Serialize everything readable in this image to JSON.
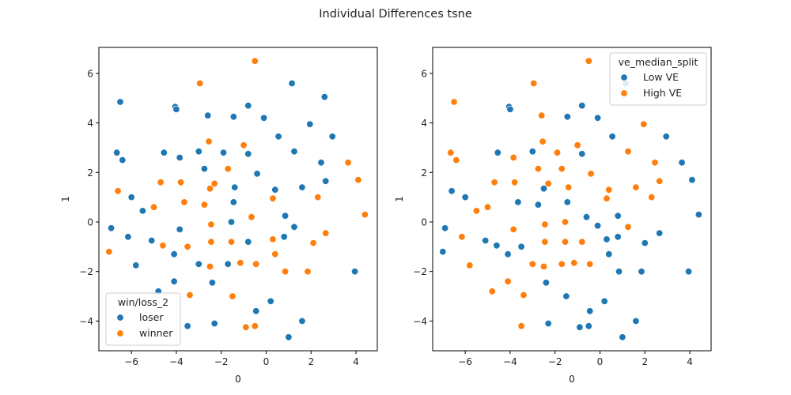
{
  "title": "Individual Differences tsne",
  "colors": {
    "blue": "#1f77b4",
    "orange": "#ff7f0e"
  },
  "chart_data": [
    {
      "type": "scatter",
      "xlabel": "0",
      "ylabel": "1",
      "xlim": [
        -7.45,
        4.95
      ],
      "ylim": [
        -5.2,
        7.05
      ],
      "xticks": [
        -6,
        -4,
        -2,
        0,
        2,
        4
      ],
      "yticks": [
        -4,
        -2,
        0,
        2,
        4,
        6
      ],
      "legend": {
        "title": "win/loss_2",
        "placement": "lower-left"
      },
      "series": [
        {
          "name": "loser",
          "color": "#1f77b4",
          "points": [
            [
              -6.5,
              4.85
            ],
            [
              -4.05,
              4.65
            ],
            [
              -4.0,
              4.55
            ],
            [
              -2.6,
              4.3
            ],
            [
              -1.45,
              4.25
            ],
            [
              -0.8,
              4.7
            ],
            [
              -0.1,
              4.2
            ],
            [
              1.15,
              5.6
            ],
            [
              2.6,
              5.05
            ],
            [
              -6.65,
              2.8
            ],
            [
              -6.4,
              2.5
            ],
            [
              -4.55,
              2.8
            ],
            [
              -3.85,
              2.6
            ],
            [
              -3.0,
              2.85
            ],
            [
              -2.75,
              2.15
            ],
            [
              -1.9,
              2.8
            ],
            [
              -0.8,
              2.75
            ],
            [
              -0.4,
              1.95
            ],
            [
              0.55,
              3.45
            ],
            [
              1.25,
              2.85
            ],
            [
              1.95,
              3.95
            ],
            [
              2.45,
              2.4
            ],
            [
              2.95,
              3.45
            ],
            [
              -6.0,
              1.0
            ],
            [
              -5.5,
              0.45
            ],
            [
              -1.4,
              1.4
            ],
            [
              -1.45,
              0.8
            ],
            [
              0.4,
              1.3
            ],
            [
              1.6,
              1.4
            ],
            [
              2.65,
              1.65
            ],
            [
              -6.9,
              -0.25
            ],
            [
              -6.15,
              -0.6
            ],
            [
              -5.1,
              -0.75
            ],
            [
              -3.85,
              -0.3
            ],
            [
              -4.1,
              -1.3
            ],
            [
              -1.55,
              0.0
            ],
            [
              -0.8,
              -0.8
            ],
            [
              0.85,
              0.25
            ],
            [
              0.8,
              -0.6
            ],
            [
              1.25,
              -0.2
            ],
            [
              -5.8,
              -1.75
            ],
            [
              -3.0,
              -1.7
            ],
            [
              -1.7,
              -1.7
            ],
            [
              -4.1,
              -2.4
            ],
            [
              -2.4,
              -2.45
            ],
            [
              -4.8,
              -2.8
            ],
            [
              -3.5,
              -4.2
            ],
            [
              -2.3,
              -4.1
            ],
            [
              -0.45,
              -3.6
            ],
            [
              0.2,
              -3.2
            ],
            [
              1.0,
              -4.65
            ],
            [
              1.6,
              -4.0
            ],
            [
              3.95,
              -2.0
            ]
          ]
        },
        {
          "name": "winner",
          "color": "#ff7f0e",
          "points": [
            [
              -0.5,
              6.5
            ],
            [
              -2.95,
              5.6
            ],
            [
              -2.55,
              3.25
            ],
            [
              -1.0,
              3.1
            ],
            [
              -6.6,
              1.25
            ],
            [
              -4.7,
              1.6
            ],
            [
              -3.8,
              1.6
            ],
            [
              -3.65,
              0.8
            ],
            [
              -2.5,
              1.35
            ],
            [
              -2.3,
              1.55
            ],
            [
              -1.7,
              2.15
            ],
            [
              -2.75,
              0.7
            ],
            [
              -5.0,
              0.6
            ],
            [
              0.3,
              0.95
            ],
            [
              2.3,
              1.0
            ],
            [
              3.65,
              2.4
            ],
            [
              4.1,
              1.7
            ],
            [
              4.4,
              0.3
            ],
            [
              -2.45,
              -0.1
            ],
            [
              -2.45,
              -0.8
            ],
            [
              -1.55,
              -0.8
            ],
            [
              -0.65,
              0.2
            ],
            [
              0.3,
              -0.7
            ],
            [
              2.65,
              -0.45
            ],
            [
              2.1,
              -0.85
            ],
            [
              -4.6,
              -0.95
            ],
            [
              -3.5,
              -1.0
            ],
            [
              -2.5,
              -1.8
            ],
            [
              -1.15,
              -1.65
            ],
            [
              -0.45,
              -1.7
            ],
            [
              0.4,
              -1.3
            ],
            [
              0.85,
              -2.0
            ],
            [
              1.85,
              -2.0
            ],
            [
              -7.0,
              -1.2
            ],
            [
              -3.4,
              -2.95
            ],
            [
              -1.5,
              -3.0
            ],
            [
              -0.9,
              -4.25
            ],
            [
              -0.5,
              -4.2
            ]
          ]
        }
      ]
    },
    {
      "type": "scatter",
      "xlabel": "0",
      "ylabel": "1",
      "xlim": [
        -7.45,
        4.95
      ],
      "ylim": [
        -5.2,
        7.05
      ],
      "xticks": [
        -6,
        -4,
        -2,
        0,
        2,
        4
      ],
      "yticks": [
        -4,
        -2,
        0,
        2,
        4,
        6
      ],
      "legend": {
        "title": "ve_median_split",
        "placement": "upper-right"
      },
      "series": [
        {
          "name": "Low VE",
          "color": "#1f77b4",
          "points": [
            [
              1.15,
              5.6
            ],
            [
              -4.05,
              4.65
            ],
            [
              -4.0,
              4.55
            ],
            [
              -1.45,
              4.25
            ],
            [
              -0.8,
              4.7
            ],
            [
              -0.1,
              4.2
            ],
            [
              -4.55,
              2.8
            ],
            [
              -3.0,
              2.85
            ],
            [
              -0.8,
              2.75
            ],
            [
              0.55,
              3.45
            ],
            [
              2.95,
              3.45
            ],
            [
              3.65,
              2.4
            ],
            [
              4.1,
              1.7
            ],
            [
              -6.6,
              1.25
            ],
            [
              -6.0,
              1.0
            ],
            [
              -3.65,
              0.8
            ],
            [
              -2.5,
              1.35
            ],
            [
              -1.45,
              0.8
            ],
            [
              -2.75,
              0.7
            ],
            [
              0.8,
              0.25
            ],
            [
              -0.6,
              0.2
            ],
            [
              4.4,
              0.3
            ],
            [
              -6.9,
              -0.25
            ],
            [
              -5.1,
              -0.75
            ],
            [
              -4.6,
              -0.95
            ],
            [
              -4.1,
              -1.3
            ],
            [
              -3.5,
              -1.0
            ],
            [
              -0.1,
              -0.15
            ],
            [
              0.3,
              -0.7
            ],
            [
              0.8,
              -0.6
            ],
            [
              0.4,
              -1.3
            ],
            [
              2.0,
              -0.85
            ],
            [
              2.65,
              -0.45
            ],
            [
              -7.0,
              -1.2
            ],
            [
              -2.4,
              -2.45
            ],
            [
              0.85,
              -2.0
            ],
            [
              1.85,
              -2.0
            ],
            [
              3.95,
              -2.0
            ],
            [
              -1.5,
              -3.0
            ],
            [
              0.2,
              -3.2
            ],
            [
              -0.45,
              -3.6
            ],
            [
              -2.3,
              -4.1
            ],
            [
              -0.9,
              -4.25
            ],
            [
              -0.5,
              -4.2
            ],
            [
              1.0,
              -4.65
            ],
            [
              1.6,
              -4.0
            ]
          ]
        },
        {
          "name": "High VE",
          "color": "#ff7f0e",
          "points": [
            [
              -0.5,
              6.5
            ],
            [
              -2.95,
              5.6
            ],
            [
              -6.5,
              4.85
            ],
            [
              -2.6,
              4.3
            ],
            [
              1.95,
              3.95
            ],
            [
              -6.65,
              2.8
            ],
            [
              -6.4,
              2.5
            ],
            [
              -3.85,
              2.6
            ],
            [
              -2.55,
              3.25
            ],
            [
              -1.9,
              2.8
            ],
            [
              -1.0,
              3.1
            ],
            [
              1.25,
              2.85
            ],
            [
              2.45,
              2.4
            ],
            [
              -2.75,
              2.15
            ],
            [
              -1.7,
              2.15
            ],
            [
              -0.4,
              1.95
            ],
            [
              -4.7,
              1.6
            ],
            [
              -3.8,
              1.6
            ],
            [
              -2.3,
              1.55
            ],
            [
              -1.4,
              1.4
            ],
            [
              0.4,
              1.3
            ],
            [
              1.6,
              1.4
            ],
            [
              2.65,
              1.65
            ],
            [
              2.3,
              1.0
            ],
            [
              0.3,
              0.95
            ],
            [
              -5.5,
              0.45
            ],
            [
              -5.0,
              0.6
            ],
            [
              -2.45,
              -0.1
            ],
            [
              -1.55,
              0.0
            ],
            [
              -3.85,
              -0.3
            ],
            [
              1.25,
              -0.2
            ],
            [
              -6.15,
              -0.6
            ],
            [
              -2.45,
              -0.8
            ],
            [
              -1.55,
              -0.8
            ],
            [
              -0.8,
              -0.8
            ],
            [
              -5.8,
              -1.75
            ],
            [
              -3.0,
              -1.7
            ],
            [
              -1.7,
              -1.7
            ],
            [
              -1.15,
              -1.65
            ],
            [
              -0.45,
              -1.7
            ],
            [
              -2.5,
              -1.8
            ],
            [
              -4.1,
              -2.4
            ],
            [
              -4.8,
              -2.8
            ],
            [
              -3.4,
              -2.95
            ],
            [
              -3.5,
              -4.2
            ]
          ]
        }
      ]
    }
  ]
}
